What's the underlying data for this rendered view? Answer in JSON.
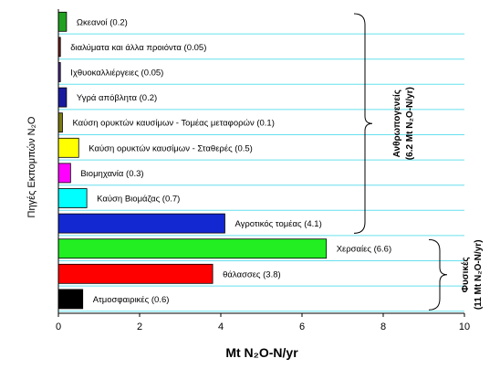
{
  "chart_data": {
    "type": "bar",
    "orientation": "horizontal",
    "xlabel": "Mt N₂O-N/yr",
    "ylabel": "Πηγές Εκπομπών N₂O",
    "xlim": [
      0,
      10
    ],
    "xticks": [
      "0",
      "2",
      "4",
      "6",
      "8",
      "10"
    ],
    "grid": "horizontal cyan lines",
    "bars": [
      {
        "label": "Ωκεανοί (0.2)",
        "value": 0.2,
        "color": "#22a022"
      },
      {
        "label": "διαλύματα και άλλα προιόντα  (0.05)",
        "value": 0.05,
        "color": "#7a1c1c"
      },
      {
        "label": "Ιχθυοκαλλιέργειες (0.05)",
        "value": 0.05,
        "color": "#4a2a8a"
      },
      {
        "label": "Υγρά απόβλητα (0.2)",
        "value": 0.2,
        "color": "#1a1aa0"
      },
      {
        "label": "Καύση ορυκτών καυσίμων - Τομέας μεταφορών (0.1)",
        "value": 0.1,
        "color": "#7a7a10"
      },
      {
        "label": "Καύση ορυκτών καυσίμων - Σταθερές (0.5)",
        "value": 0.5,
        "color": "#ffff00"
      },
      {
        "label": "Βιομηχανία (0.3)",
        "value": 0.3,
        "color": "#ff00ff"
      },
      {
        "label": "Καύση Βιομάζας (0.7)",
        "value": 0.7,
        "color": "#00ffff"
      },
      {
        "label": "Αγροτικός τομέας (4.1)",
        "value": 4.1,
        "color": "#1428d2"
      },
      {
        "label": "Χερσαίες (6.6)",
        "value": 6.6,
        "color": "#22ee22"
      },
      {
        "label": "θάλασσες (3.8)",
        "value": 3.8,
        "color": "#ff0000"
      },
      {
        "label": "Ατμοσφαιρικές (0.6)",
        "value": 0.6,
        "color": "#000000"
      }
    ],
    "groups": [
      {
        "line1": "Ανθρωπογενείς",
        "line2": "(6.2 Mt N₂O-N/yr)",
        "first": 0,
        "last": 8
      },
      {
        "line1": "Φυσικές",
        "line2": "(11 Mt N₂O-N/yr)",
        "first": 9,
        "last": 11
      }
    ],
    "gridline_color": "#66e0ee"
  }
}
